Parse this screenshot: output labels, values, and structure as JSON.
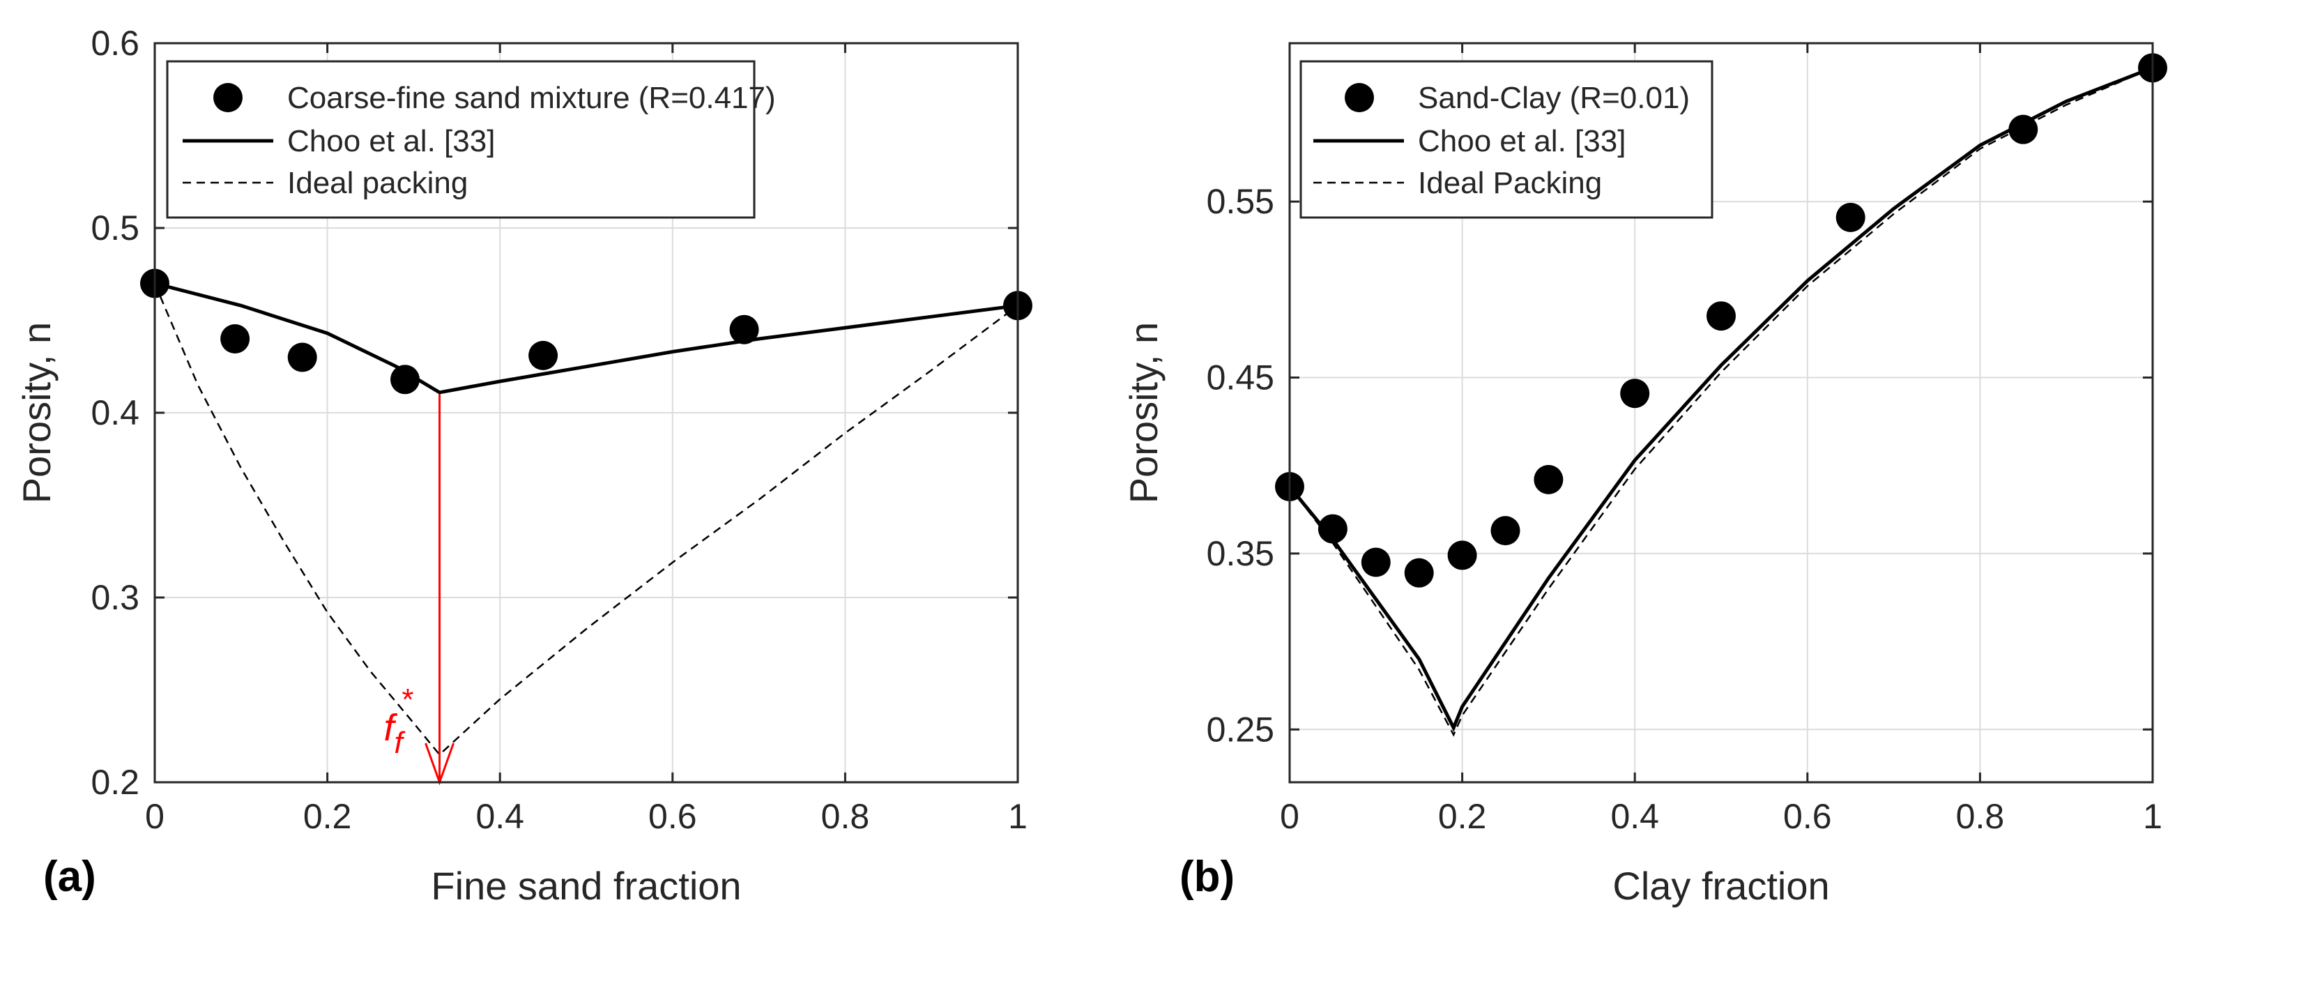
{
  "colors": {
    "axis": "#262626",
    "grid": "#dcdcdc",
    "marker": "#000000",
    "annotation": "#ff0000"
  },
  "chart_data": [
    {
      "type": "scatter",
      "panel_label": "(a)",
      "xlabel": "Fine sand fraction",
      "ylabel": "Porosity, n",
      "xlim": [
        0,
        1
      ],
      "ylim": [
        0.2,
        0.6
      ],
      "xticks": [
        0,
        0.2,
        0.4,
        0.6,
        0.8,
        1
      ],
      "xtick_labels": [
        "0",
        "0.2",
        "0.4",
        "0.6",
        "0.8",
        "1"
      ],
      "yticks": [
        0.2,
        0.3,
        0.4,
        0.5,
        0.6
      ],
      "ytick_labels": [
        "0.2",
        "0.3",
        "0.4",
        "0.5",
        "0.6"
      ],
      "grid": true,
      "legend_position": "top",
      "series": [
        {
          "name": "Coarse-fine sand mixture (R=0.417)",
          "style": "markers",
          "x": [
            0,
            0.093,
            0.171,
            0.29,
            0.45,
            0.683,
            1
          ],
          "y": [
            0.47,
            0.44,
            0.43,
            0.418,
            0.431,
            0.445,
            0.458
          ]
        },
        {
          "name": "Choo et al. [33]",
          "style": "solid",
          "x": [
            0,
            0.1,
            0.2,
            0.28,
            0.33,
            0.4,
            0.5,
            0.6,
            0.7,
            0.8,
            0.9,
            1
          ],
          "y": [
            0.47,
            0.458,
            0.443,
            0.425,
            0.411,
            0.417,
            0.425,
            0.433,
            0.44,
            0.446,
            0.452,
            0.458
          ]
        },
        {
          "name": "Ideal packing",
          "style": "dashed",
          "x": [
            0,
            0.05,
            0.1,
            0.15,
            0.2,
            0.25,
            0.3,
            0.33,
            0.4,
            0.5,
            0.6,
            0.7,
            0.8,
            0.9,
            1
          ],
          "y": [
            0.47,
            0.415,
            0.37,
            0.33,
            0.292,
            0.26,
            0.232,
            0.215,
            0.245,
            0.283,
            0.319,
            0.353,
            0.389,
            0.423,
            0.458
          ]
        }
      ],
      "annotation": {
        "label": "f",
        "subscript": "f",
        "superscript": "*",
        "x": 0.33,
        "y_from": 0.41,
        "y_to": 0.2
      }
    },
    {
      "type": "scatter",
      "panel_label": "(b)",
      "xlabel": "Clay fraction",
      "ylabel": "Porosity, n",
      "xlim": [
        0,
        1
      ],
      "ylim": [
        0.22,
        0.64
      ],
      "xticks": [
        0,
        0.2,
        0.4,
        0.6,
        0.8,
        1
      ],
      "xtick_labels": [
        "0",
        "0.2",
        "0.4",
        "0.6",
        "0.8",
        "1"
      ],
      "yticks": [
        0.25,
        0.35,
        0.45,
        0.55
      ],
      "ytick_labels": [
        "0.25",
        "0.35",
        "0.45",
        "0.55"
      ],
      "grid": true,
      "legend_position": "top-left",
      "series": [
        {
          "name": "Sand-Clay (R=0.01)",
          "style": "markers",
          "x": [
            0,
            0.05,
            0.1,
            0.15,
            0.2,
            0.25,
            0.3,
            0.4,
            0.5,
            0.65,
            0.85,
            1
          ],
          "y": [
            0.388,
            0.364,
            0.345,
            0.339,
            0.349,
            0.363,
            0.392,
            0.441,
            0.485,
            0.541,
            0.591,
            0.626
          ]
        },
        {
          "name": "Choo et al. [33]",
          "style": "solid",
          "x": [
            0,
            0.05,
            0.1,
            0.15,
            0.19,
            0.2,
            0.3,
            0.4,
            0.5,
            0.6,
            0.7,
            0.8,
            0.9,
            1
          ],
          "y": [
            0.388,
            0.358,
            0.324,
            0.29,
            0.251,
            0.263,
            0.336,
            0.403,
            0.457,
            0.505,
            0.546,
            0.582,
            0.607,
            0.626
          ]
        },
        {
          "name": "Ideal Packing",
          "style": "dashed",
          "x": [
            0,
            0.05,
            0.1,
            0.15,
            0.19,
            0.2,
            0.3,
            0.4,
            0.5,
            0.6,
            0.7,
            0.8,
            0.9,
            1
          ],
          "y": [
            0.388,
            0.356,
            0.32,
            0.284,
            0.247,
            0.258,
            0.33,
            0.398,
            0.453,
            0.502,
            0.543,
            0.58,
            0.605,
            0.626
          ]
        }
      ]
    }
  ]
}
